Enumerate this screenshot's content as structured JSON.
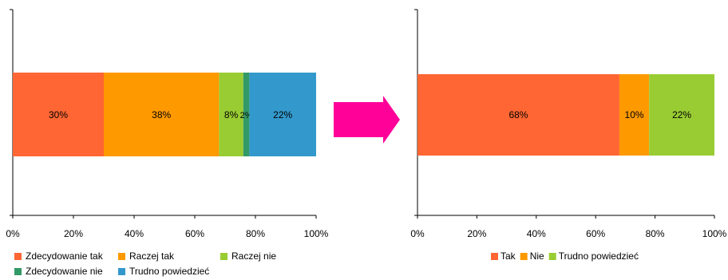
{
  "colors": {
    "zdecydowanie_tak": "#ff6633",
    "raczej_tak": "#ff9900",
    "raczej_nie": "#99cc33",
    "zdecydowanie_nie": "#339966",
    "trudno": "#3399cc",
    "arrow": "#ff0099"
  },
  "chart_data": [
    {
      "type": "bar",
      "orientation": "horizontal",
      "stacked": true,
      "xlim": [
        0,
        100
      ],
      "x_ticks": [
        "0%",
        "20%",
        "40%",
        "60%",
        "80%",
        "100%"
      ],
      "series": [
        {
          "name": "Zdecydowanie tak",
          "value": 30,
          "label": "30%",
          "color_key": "zdecydowanie_tak"
        },
        {
          "name": "Raczej tak",
          "value": 38,
          "label": "38%",
          "color_key": "raczej_tak"
        },
        {
          "name": "Raczej nie",
          "value": 8,
          "label": "8%",
          "color_key": "raczej_nie"
        },
        {
          "name": "Zdecydowanie nie",
          "value": 2,
          "label": "2%",
          "color_key": "zdecydowanie_nie"
        },
        {
          "name": "Trudno powiedzieć",
          "value": 22,
          "label": "22%",
          "color_key": "trudno"
        }
      ],
      "legend_position": "bottom"
    },
    {
      "type": "bar",
      "orientation": "horizontal",
      "stacked": true,
      "xlim": [
        0,
        100
      ],
      "x_ticks": [
        "0%",
        "20%",
        "40%",
        "60%",
        "80%",
        "100%"
      ],
      "series": [
        {
          "name": "Tak",
          "value": 68,
          "label": "68%",
          "color_key": "zdecydowanie_tak"
        },
        {
          "name": "Nie",
          "value": 10,
          "label": "10%",
          "color_key": "raczej_tak"
        },
        {
          "name": "Trudno powiedzieć",
          "value": 22,
          "label": "22%",
          "color_key": "raczej_nie"
        }
      ],
      "legend_position": "bottom"
    }
  ]
}
